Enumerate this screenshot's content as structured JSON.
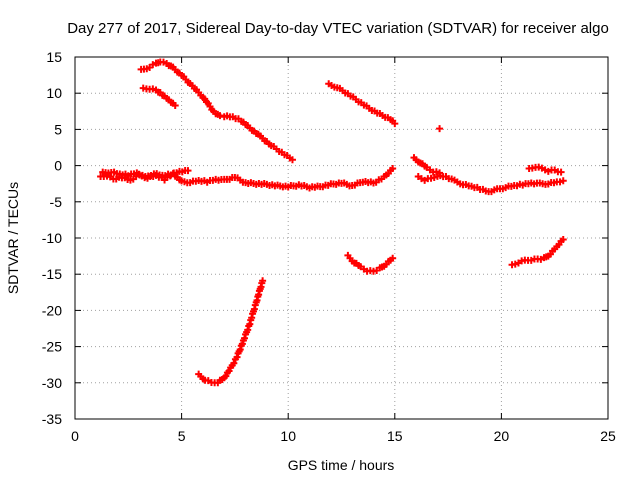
{
  "chart_data": {
    "type": "scatter",
    "title": "Day 277 of 2017, Sidereal Day-to-day VTEC variation (SDTVAR) for receiver algo",
    "xlabel": "GPS time / hours",
    "ylabel": "SDTVAR / TECUs",
    "xlim": [
      0,
      25
    ],
    "ylim": [
      -35,
      15
    ],
    "grid": true,
    "marker": "plus",
    "color": "#ff0000",
    "xticks": [
      {
        "value": 0,
        "label": "0"
      },
      {
        "value": 5,
        "label": "5"
      },
      {
        "value": 10,
        "label": "10"
      },
      {
        "value": 15,
        "label": "15"
      },
      {
        "value": 20,
        "label": "20"
      },
      {
        "value": 25,
        "label": "25"
      }
    ],
    "yticks": [
      {
        "value": 15,
        "label": "15"
      },
      {
        "value": 10,
        "label": "10"
      },
      {
        "value": 5,
        "label": "5"
      },
      {
        "value": 0,
        "label": "0"
      },
      {
        "value": -5,
        "label": "-5"
      },
      {
        "value": -10,
        "label": "-10"
      },
      {
        "value": -15,
        "label": "-15"
      },
      {
        "value": -20,
        "label": "-20"
      },
      {
        "value": -25,
        "label": "-25"
      },
      {
        "value": -30,
        "label": "-30"
      },
      {
        "value": -35,
        "label": "-35"
      }
    ],
    "series": [
      {
        "name": "arc-high-1",
        "x": [
          3.1,
          3.5,
          3.8,
          4.0,
          4.3,
          4.6,
          5.0,
          5.5,
          6.0,
          6.5,
          6.8,
          7.0,
          7.4,
          7.8,
          8.2,
          8.7,
          9.2,
          9.7,
          10.2
        ],
        "y": [
          13.2,
          13.6,
          14.1,
          14.4,
          14.1,
          13.5,
          12.5,
          11.0,
          9.5,
          7.5,
          6.8,
          6.8,
          6.7,
          6.2,
          5.2,
          4.0,
          2.8,
          1.8,
          0.8
        ]
      },
      {
        "name": "arc-high-2",
        "x": [
          3.2,
          3.5,
          3.8,
          4.1,
          4.4,
          4.7
        ],
        "y": [
          10.6,
          10.6,
          10.4,
          9.8,
          9.1,
          8.3
        ]
      },
      {
        "name": "arc-high-3",
        "x": [
          11.9,
          12.3,
          12.8,
          13.3,
          13.8,
          14.3,
          14.8,
          15.0
        ],
        "y": [
          11.2,
          10.8,
          9.9,
          8.9,
          7.9,
          7.1,
          6.4,
          5.8
        ]
      },
      {
        "name": "point-17",
        "x": [
          17.1
        ],
        "y": [
          5.1
        ]
      },
      {
        "name": "band-main-left",
        "x": [
          1.2,
          1.5,
          1.8,
          2.2,
          2.6,
          3.0,
          3.4,
          3.8,
          4.2,
          4.6,
          5.0,
          5.4,
          5.8,
          6.2,
          6.6,
          7.0,
          7.5,
          8.0,
          8.5,
          9.0,
          9.5,
          10.0,
          10.5,
          11.0,
          11.5,
          12.0,
          12.5,
          13.0,
          13.5,
          14.0,
          14.5,
          14.9
        ],
        "y": [
          -1.6,
          -1.4,
          -1.9,
          -1.6,
          -2.0,
          -1.3,
          -1.7,
          -1.4,
          -1.9,
          -1.1,
          -2.2,
          -2.3,
          -2.1,
          -2.2,
          -1.9,
          -2.0,
          -1.6,
          -2.4,
          -2.5,
          -2.6,
          -2.8,
          -2.9,
          -2.7,
          -3.0,
          -2.9,
          -2.6,
          -2.4,
          -2.8,
          -2.2,
          -2.4,
          -1.6,
          -0.4
        ]
      },
      {
        "name": "band-main-left-2",
        "x": [
          1.3,
          1.7,
          2.1,
          2.5,
          2.9,
          3.3,
          3.7,
          4.1,
          4.5,
          4.9,
          5.3
        ],
        "y": [
          -1.0,
          -0.9,
          -1.2,
          -1.3,
          -1.0,
          -1.6,
          -1.1,
          -1.4,
          -1.2,
          -0.8,
          -0.7
        ]
      },
      {
        "name": "band-main-right",
        "x": [
          16.1,
          16.4,
          16.7,
          17.0,
          17.4,
          17.8,
          18.2,
          18.6,
          19.0,
          19.4,
          19.8,
          20.2,
          20.6,
          21.0,
          21.4,
          21.8,
          22.2,
          22.6,
          22.9
        ],
        "y": [
          -1.6,
          -2.0,
          -1.8,
          -1.4,
          -1.5,
          -2.1,
          -2.6,
          -2.9,
          -3.2,
          -3.6,
          -3.3,
          -3.0,
          -2.8,
          -2.6,
          -2.4,
          -2.5,
          -2.5,
          -2.3,
          -2.1
        ]
      },
      {
        "name": "band-right-upper",
        "x": [
          15.9,
          16.2,
          16.5,
          16.8,
          17.1
        ],
        "y": [
          1.0,
          0.4,
          -0.3,
          -0.8,
          -1.0
        ]
      },
      {
        "name": "band-right-upper-2",
        "x": [
          21.3,
          21.6,
          21.9,
          22.2,
          22.5,
          22.8
        ],
        "y": [
          -0.5,
          -0.2,
          -0.4,
          -0.7,
          -0.6,
          -0.9
        ]
      },
      {
        "name": "dip-center",
        "x": [
          12.8,
          13.1,
          13.4,
          13.7,
          14.0,
          14.3,
          14.6,
          14.9
        ],
        "y": [
          -12.5,
          -13.4,
          -14.0,
          -14.5,
          -14.6,
          -14.2,
          -13.6,
          -12.8
        ]
      },
      {
        "name": "rise-right",
        "x": [
          20.5,
          20.8,
          21.1,
          21.4,
          21.7,
          22.0,
          22.3,
          22.6,
          22.9
        ],
        "y": [
          -13.8,
          -13.4,
          -13.1,
          -13.0,
          -12.9,
          -12.8,
          -12.2,
          -11.2,
          -10.2
        ]
      },
      {
        "name": "deep-left",
        "x": [
          5.8,
          6.1,
          6.4,
          6.7,
          7.0,
          7.3,
          7.6,
          7.9,
          8.2,
          8.5,
          8.8
        ],
        "y": [
          -28.9,
          -29.6,
          -30.0,
          -29.9,
          -29.3,
          -28.0,
          -26.4,
          -24.2,
          -21.8,
          -18.9,
          -15.9
        ]
      }
    ]
  }
}
